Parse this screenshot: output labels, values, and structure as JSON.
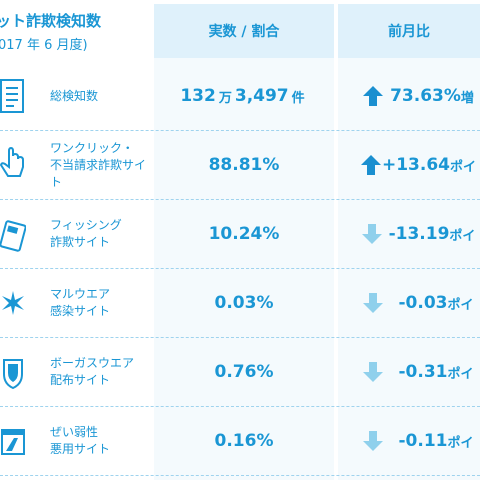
{
  "header": {
    "title": "ット詐欺検知数",
    "period": "017 年 6 月度)",
    "col_value": "実数 / 割合",
    "col_change": "前月比"
  },
  "rows": [
    {
      "label_line1": "総検知数",
      "label_line2": "",
      "value_main": "132",
      "value_unit": "万",
      "value_rest": "3,497",
      "value_suffix": "件",
      "change": "73.63%",
      "change_suffix": "増",
      "direction": "up-solid",
      "icon": "document-list-icon"
    },
    {
      "label_line1": "ワンクリック・",
      "label_line2": "不当請求詐欺サイト",
      "value_main": "88.81%",
      "value_unit": "",
      "value_rest": "",
      "value_suffix": "",
      "change": "+13.64",
      "change_suffix": "ポイ",
      "direction": "up-solid",
      "icon": "click-hand-icon"
    },
    {
      "label_line1": "フィッシング",
      "label_line2": "詐欺サイト",
      "value_main": "10.24%",
      "value_unit": "",
      "value_rest": "",
      "value_suffix": "",
      "change": "-13.19",
      "change_suffix": "ポイ",
      "direction": "down-light",
      "icon": "credit-card-icon"
    },
    {
      "label_line1": "マルウエア",
      "label_line2": "感染サイト",
      "value_main": "0.03%",
      "value_unit": "",
      "value_rest": "",
      "value_suffix": "",
      "change": "-0.03",
      "change_suffix": "ポイ",
      "direction": "down-light",
      "icon": "virus-burst-icon"
    },
    {
      "label_line1": "ボーガスウエア",
      "label_line2": "配布サイト",
      "value_main": "0.76%",
      "value_unit": "",
      "value_rest": "",
      "value_suffix": "",
      "change": "-0.31",
      "change_suffix": "ポイ",
      "direction": "down-light",
      "icon": "fake-shield-icon"
    },
    {
      "label_line1": "ぜい弱性",
      "label_line2": "悪用サイト",
      "value_main": "0.16%",
      "value_unit": "",
      "value_rest": "",
      "value_suffix": "",
      "change": "-0.11",
      "change_suffix": "ポイ",
      "direction": "down-light",
      "icon": "vulnerable-window-icon"
    }
  ],
  "colors": {
    "accent": "#1a96d4",
    "arrow_up": "#1a8fd0",
    "arrow_down": "#8fd0ec",
    "header_bg": "#dff1fb"
  }
}
